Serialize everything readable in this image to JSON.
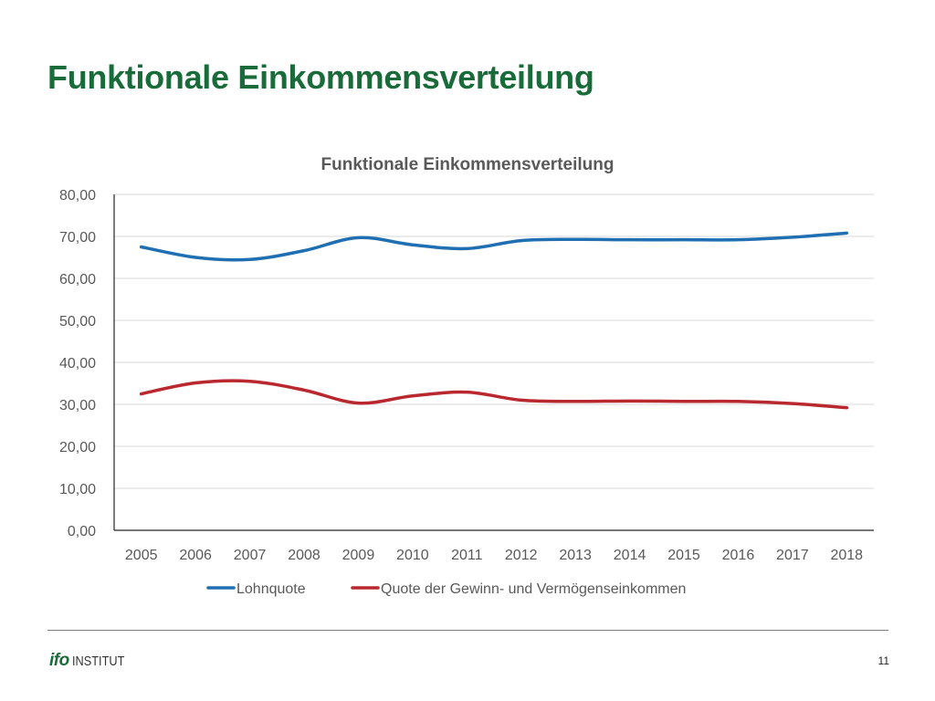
{
  "slide": {
    "title": "Funktionale Einkommensverteilung",
    "page_number": "11",
    "logo": {
      "mark": "ifo",
      "text": "INSTITUT"
    }
  },
  "colors": {
    "title": "#1a6b3a",
    "lohnquote": "#1f6fb2",
    "gewinnquote": "#b8282e",
    "grid": "#d9d9d9",
    "axis": "#262626",
    "tick_label": "#595959"
  },
  "chart_data": {
    "type": "line",
    "title": "Funktionale Einkommensverteilung",
    "xlabel": "",
    "ylabel": "",
    "categories": [
      "2005",
      "2006",
      "2007",
      "2008",
      "2009",
      "2010",
      "2011",
      "2012",
      "2013",
      "2014",
      "2015",
      "2016",
      "2017",
      "2018"
    ],
    "ylim": [
      0,
      80
    ],
    "yticks": [
      "0,00",
      "10,00",
      "20,00",
      "30,00",
      "40,00",
      "50,00",
      "60,00",
      "70,00",
      "80,00"
    ],
    "grid": true,
    "legend_position": "bottom",
    "series": [
      {
        "name": "Lohnquote",
        "color": "#1f6fb2",
        "values": [
          67.5,
          65.0,
          64.5,
          66.6,
          69.7,
          68.0,
          67.1,
          69.0,
          69.3,
          69.2,
          69.2,
          69.2,
          69.8,
          70.8
        ]
      },
      {
        "name": "Quote der Gewinn- und Vermögenseinkommen",
        "color": "#b8282e",
        "values": [
          32.5,
          35.1,
          35.5,
          33.4,
          30.3,
          32.0,
          32.9,
          31.0,
          30.7,
          30.8,
          30.7,
          30.7,
          30.2,
          29.2
        ]
      }
    ]
  }
}
